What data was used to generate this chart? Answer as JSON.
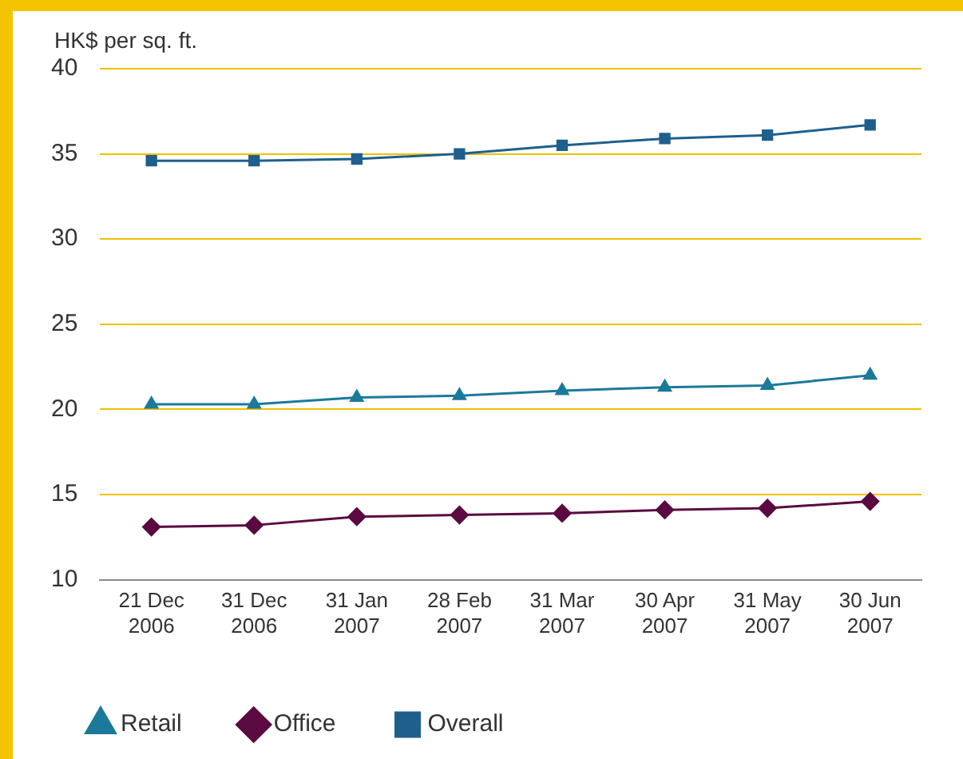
{
  "chart_data": {
    "type": "line",
    "ylabel": "HK$ per sq. ft.",
    "categories": [
      "21 Dec 2006",
      "31 Dec 2006",
      "31 Jan 2007",
      "28 Feb 2007",
      "31 Mar 2007",
      "30 Apr 2007",
      "31 May 2007",
      "30 Jun 2007"
    ],
    "series": [
      {
        "name": "Retail",
        "color": "#1b7a99",
        "marker": "triangle",
        "values": [
          20.3,
          20.3,
          20.7,
          20.8,
          21.1,
          21.3,
          21.4,
          22.0
        ]
      },
      {
        "name": "Office",
        "color": "#5a0a40",
        "marker": "diamond",
        "values": [
          13.1,
          13.2,
          13.7,
          13.8,
          13.9,
          14.1,
          14.2,
          14.6
        ]
      },
      {
        "name": "Overall",
        "color": "#1f5f8e",
        "marker": "square",
        "values": [
          34.6,
          34.6,
          34.7,
          35.0,
          35.5,
          35.9,
          36.1,
          36.7
        ]
      }
    ],
    "ylim": [
      10,
      40
    ],
    "yticks": [
      10,
      15,
      20,
      25,
      30,
      35,
      40
    ],
    "grid": "y",
    "legend": "bottom",
    "line_style": "solid"
  }
}
